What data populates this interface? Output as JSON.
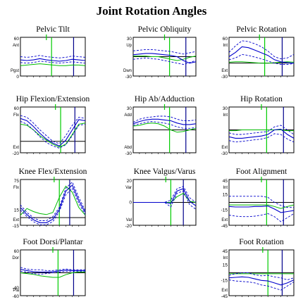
{
  "title": "Joint Rotation Angles",
  "colors": {
    "patient": "#0000cc",
    "normal_band": "#0000cc",
    "normal_mean": "#00bb00",
    "toe_off": "#00cc00",
    "foot_off": "#00008b"
  },
  "chart_data": [
    {
      "type": "line",
      "title": "Pelvic Tilt",
      "ylim": [
        0,
        60
      ],
      "yticks": [
        "60",
        "0"
      ],
      "ylabels": [
        "Ant",
        "Pgst"
      ],
      "x": [
        0,
        10,
        20,
        30,
        40,
        50,
        60,
        70,
        80,
        90,
        100
      ],
      "series": [
        {
          "role": "normal_mean",
          "values": [
            16,
            17,
            18,
            19,
            18,
            17,
            16,
            16,
            17,
            17,
            16
          ]
        },
        {
          "role": "band_upper",
          "values": [
            30,
            29,
            30,
            32,
            30,
            29,
            28,
            29,
            31,
            30,
            29
          ]
        },
        {
          "role": "band_lower",
          "values": [
            21,
            20,
            21,
            23,
            22,
            21,
            20,
            21,
            22,
            21,
            20
          ]
        },
        {
          "role": "patient",
          "values": [
            25,
            24,
            25,
            27,
            25,
            24,
            23,
            24,
            26,
            25,
            24
          ]
        }
      ],
      "events": [
        48,
        82
      ]
    },
    {
      "type": "line",
      "title": "Pelvic Obliquity",
      "ylim": [
        -30,
        30
      ],
      "yticks": [
        "30",
        "-30"
      ],
      "ylabels": [
        "Up",
        "Dwn"
      ],
      "x": [
        0,
        10,
        20,
        30,
        40,
        50,
        60,
        70,
        80,
        90,
        100
      ],
      "series": [
        {
          "role": "normal_mean",
          "values": [
            1,
            1,
            1,
            0,
            0,
            -2,
            -4,
            -6,
            -4,
            -1,
            1
          ]
        },
        {
          "role": "band_upper",
          "values": [
            9,
            10,
            11,
            11,
            10,
            9,
            8,
            6,
            4,
            6,
            8
          ]
        },
        {
          "role": "band_lower",
          "values": [
            -4,
            -3,
            -2,
            -3,
            -4,
            -6,
            -8,
            -10,
            -12,
            -9,
            -6
          ]
        },
        {
          "role": "patient",
          "values": [
            3,
            4,
            5,
            5,
            4,
            3,
            2,
            0,
            -6,
            -10,
            -8
          ]
        }
      ],
      "events": [
        58,
        84
      ]
    },
    {
      "type": "line",
      "title": "Pelvic Rotation",
      "ylim": [
        -30,
        60
      ],
      "yticks": [
        "60",
        "-30"
      ],
      "ylabels": [
        "Int",
        "Ext"
      ],
      "x": [
        0,
        10,
        20,
        30,
        40,
        50,
        60,
        70,
        80,
        90,
        100
      ],
      "series": [
        {
          "role": "normal_mean",
          "values": [
            2,
            3,
            3,
            2,
            1,
            0,
            0,
            1,
            2,
            3,
            2
          ]
        },
        {
          "role": "band_upper",
          "values": [
            25,
            40,
            52,
            50,
            45,
            38,
            28,
            15,
            10,
            12,
            20
          ]
        },
        {
          "role": "band_lower",
          "values": [
            8,
            12,
            20,
            18,
            14,
            10,
            5,
            0,
            -3,
            -3,
            -1
          ]
        },
        {
          "role": "patient",
          "values": [
            15,
            25,
            38,
            36,
            30,
            24,
            18,
            8,
            3,
            1,
            0
          ]
        }
      ],
      "events": [
        55,
        82
      ]
    },
    {
      "type": "line",
      "title": "Hip Flexion/Extension",
      "ylim": [
        -20,
        60
      ],
      "yticks": [
        "60",
        "-20"
      ],
      "ylabels": [
        "Flx",
        "Ext"
      ],
      "x": [
        0,
        10,
        20,
        30,
        40,
        50,
        60,
        70,
        80,
        90,
        100
      ],
      "series": [
        {
          "role": "normal_mean",
          "values": [
            30,
            28,
            20,
            10,
            2,
            -5,
            -10,
            -5,
            12,
            30,
            32
          ]
        },
        {
          "role": "band_upper",
          "values": [
            45,
            42,
            32,
            20,
            10,
            0,
            -4,
            10,
            28,
            42,
            40
          ]
        },
        {
          "role": "band_lower",
          "values": [
            35,
            30,
            20,
            8,
            -2,
            -8,
            -12,
            -6,
            10,
            28,
            30
          ]
        },
        {
          "role": "patient",
          "values": [
            40,
            36,
            26,
            14,
            4,
            -3,
            -8,
            2,
            20,
            38,
            36
          ]
        }
      ],
      "events": [
        62,
        84
      ]
    },
    {
      "type": "line",
      "title": "Hip Ab/Adduction",
      "ylim": [
        -30,
        30
      ],
      "yticks": [
        "30",
        "-30"
      ],
      "ylabels": [
        "Add",
        "Abd"
      ],
      "x": [
        0,
        10,
        20,
        30,
        40,
        50,
        60,
        70,
        80,
        90,
        100
      ],
      "series": [
        {
          "role": "normal_mean",
          "values": [
            5,
            6,
            8,
            9,
            8,
            5,
            0,
            -3,
            -2,
            0,
            2
          ]
        },
        {
          "role": "band_upper",
          "values": [
            10,
            14,
            16,
            17,
            18,
            18,
            17,
            14,
            12,
            12,
            13
          ]
        },
        {
          "role": "band_lower",
          "values": [
            6,
            8,
            10,
            11,
            10,
            9,
            7,
            4,
            2,
            2,
            3
          ]
        },
        {
          "role": "patient",
          "values": [
            8,
            11,
            13,
            14,
            14,
            13,
            12,
            9,
            7,
            7,
            8
          ]
        }
      ],
      "events": [
        58,
        84
      ]
    },
    {
      "type": "line",
      "title": "Hip Rotation",
      "ylim": [
        -30,
        30
      ],
      "yticks": [
        "30",
        "-30"
      ],
      "ylabels": [
        "Int",
        "Ext"
      ],
      "x": [
        0,
        10,
        20,
        30,
        40,
        50,
        60,
        70,
        80,
        90,
        100
      ],
      "series": [
        {
          "role": "normal_mean",
          "values": [
            -1,
            -1,
            0,
            0,
            0,
            0,
            0,
            0,
            0,
            -1,
            -1
          ]
        },
        {
          "role": "band_upper",
          "values": [
            -4,
            -6,
            -6,
            -5,
            -4,
            -3,
            -2,
            4,
            6,
            0,
            -6
          ]
        },
        {
          "role": "band_lower",
          "values": [
            -14,
            -16,
            -15,
            -14,
            -13,
            -12,
            -10,
            -5,
            -6,
            -12,
            -16
          ]
        },
        {
          "role": "patient",
          "values": [
            -9,
            -11,
            -11,
            -10,
            -9,
            -8,
            -6,
            0,
            1,
            -6,
            -11
          ]
        }
      ],
      "events": [
        58,
        84
      ]
    },
    {
      "type": "line",
      "title": "Knee Flex/Extension",
      "ylim": [
        -15,
        75
      ],
      "yticks": [
        "75",
        "15",
        "-15"
      ],
      "ylabels": [
        "Flx",
        "Ext"
      ],
      "x": [
        0,
        10,
        20,
        30,
        40,
        50,
        60,
        70,
        80,
        90,
        100
      ],
      "series": [
        {
          "role": "normal_mean",
          "values": [
            5,
            18,
            12,
            8,
            6,
            10,
            40,
            62,
            50,
            20,
            5
          ]
        },
        {
          "role": "band_upper",
          "values": [
            25,
            10,
            0,
            -6,
            -6,
            2,
            20,
            58,
            70,
            40,
            14
          ]
        },
        {
          "role": "band_lower",
          "values": [
            15,
            2,
            -8,
            -14,
            -14,
            -8,
            12,
            45,
            58,
            28,
            6
          ]
        },
        {
          "role": "patient",
          "values": [
            20,
            6,
            -4,
            -10,
            -10,
            -3,
            16,
            52,
            64,
            34,
            10
          ]
        }
      ],
      "events": [
        60,
        76
      ]
    },
    {
      "type": "line",
      "title": "Knee Valgus/Varus",
      "ylim": [
        -20,
        20
      ],
      "yticks": [
        "20",
        "0",
        "-20"
      ],
      "ylabels": [
        "Var",
        "Val"
      ],
      "x": [
        0,
        10,
        20,
        30,
        40,
        50,
        60,
        70,
        80,
        90,
        100
      ],
      "series": [
        {
          "role": "normal_mean",
          "values": [
            0,
            0,
            0,
            0,
            0,
            0,
            0,
            5,
            8,
            1,
            0
          ]
        },
        {
          "role": "band_upper",
          "values": [
            0,
            0,
            0,
            0,
            0,
            0,
            2,
            12,
            14,
            4,
            0
          ]
        },
        {
          "role": "band_lower",
          "values": [
            0,
            0,
            0,
            0,
            0,
            0,
            -4,
            8,
            10,
            -2,
            -6
          ]
        },
        {
          "role": "patient",
          "values": [
            0,
            0,
            0,
            0,
            0,
            0,
            -1,
            10,
            12,
            1,
            -3
          ]
        }
      ],
      "events": [
        60,
        80
      ]
    },
    {
      "type": "line",
      "title": "Foot Alignment",
      "ylim": [
        -45,
        45
      ],
      "yticks": [
        "45",
        "15",
        "-15",
        "-45"
      ],
      "ylabels": [
        "Int",
        "Ext"
      ],
      "x": [
        0,
        10,
        20,
        30,
        40,
        50,
        60,
        70,
        80,
        90,
        100
      ],
      "series": [
        {
          "role": "normal_mean",
          "values": [
            -5,
            -5,
            -5,
            -5,
            -5,
            -5,
            -5,
            -8,
            -12,
            -8,
            -5
          ]
        },
        {
          "role": "band_upper",
          "values": [
            12,
            12,
            12,
            12,
            12,
            12,
            10,
            0,
            -6,
            -10,
            -10
          ]
        },
        {
          "role": "band_lower",
          "values": [
            -25,
            -27,
            -28,
            -28,
            -27,
            -25,
            -22,
            -28,
            -38,
            -30,
            -22
          ]
        },
        {
          "role": "patient",
          "values": [
            -8,
            -9,
            -9,
            -9,
            -8,
            -8,
            -7,
            -13,
            -20,
            -18,
            -16
          ]
        }
      ],
      "events": [
        58,
        84
      ]
    },
    {
      "type": "line",
      "title": "Foot Dorsi/Plantar",
      "ylim": [
        -60,
        60
      ],
      "yticks": [
        "60",
        "-40",
        "-60"
      ],
      "ylabels": [
        "Dor",
        "Pla"
      ],
      "x": [
        0,
        10,
        20,
        30,
        40,
        50,
        60,
        70,
        80,
        90,
        100
      ],
      "series": [
        {
          "role": "normal_mean",
          "values": [
            0,
            -2,
            -4,
            -8,
            -10,
            -12,
            -12,
            -5,
            0,
            2,
            2
          ]
        },
        {
          "role": "band_upper",
          "values": [
            14,
            10,
            8,
            8,
            6,
            6,
            8,
            10,
            8,
            8,
            8
          ]
        },
        {
          "role": "band_lower",
          "values": [
            4,
            2,
            -2,
            -4,
            -2,
            0,
            2,
            4,
            4,
            4,
            4
          ]
        },
        {
          "role": "patient",
          "values": [
            9,
            6,
            3,
            2,
            2,
            3,
            5,
            7,
            6,
            6,
            6
          ]
        }
      ],
      "events": [
        58,
        82
      ]
    },
    {
      "type": "line",
      "title": "Foot Rotation",
      "ylim": [
        -45,
        45
      ],
      "yticks": [
        "45",
        "15",
        "-15",
        "-45"
      ],
      "ylabels": [
        "Int",
        "Ext"
      ],
      "x": [
        0,
        10,
        20,
        30,
        40,
        50,
        60,
        70,
        80,
        90,
        100
      ],
      "series": [
        {
          "role": "normal_mean",
          "values": [
            -2,
            -2,
            -2,
            -2,
            -2,
            -2,
            -2,
            -2,
            -2,
            -2,
            -2
          ]
        },
        {
          "role": "band_upper",
          "values": [
            -5,
            -2,
            0,
            0,
            -4,
            -6,
            -5,
            -8,
            -10,
            -14,
            -10
          ]
        },
        {
          "role": "band_lower",
          "values": [
            -14,
            -16,
            -17,
            -18,
            -20,
            -24,
            -26,
            -30,
            -34,
            -26,
            -18
          ]
        },
        {
          "role": "patient",
          "values": [
            -10,
            -9,
            -8,
            -9,
            -12,
            -15,
            -16,
            -20,
            -24,
            -20,
            -14
          ]
        }
      ],
      "events": [
        60,
        82
      ]
    }
  ]
}
